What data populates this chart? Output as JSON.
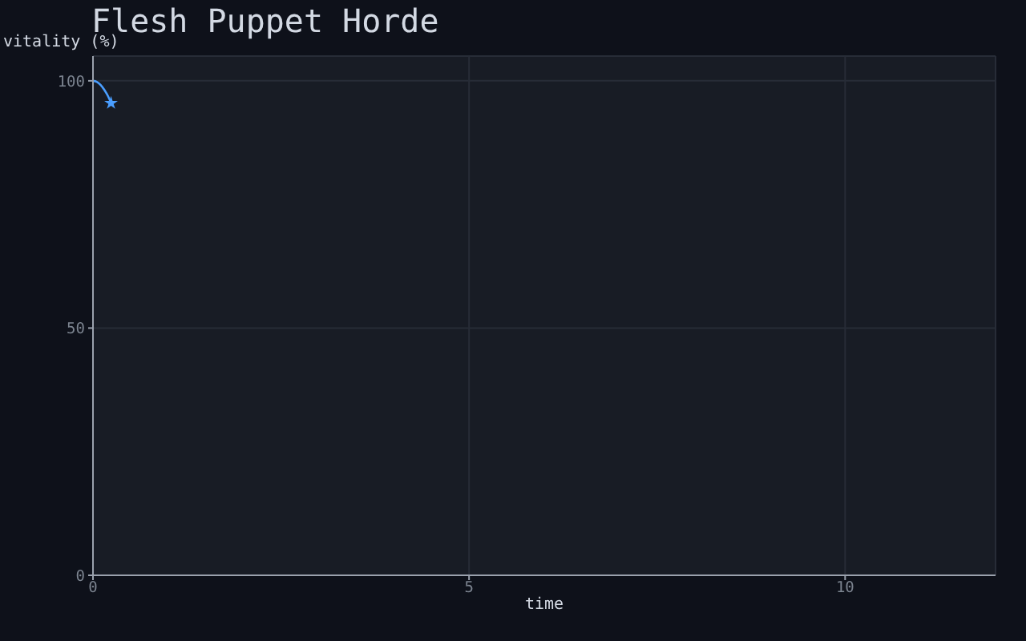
{
  "chart_data": {
    "type": "line",
    "title": "Flesh Puppet Horde",
    "xlabel": "time",
    "ylabel": "vitality (%)",
    "series": [
      {
        "color": "#4a9eff",
        "x": [
          0,
          0.05,
          0.1,
          0.15,
          0.2,
          0.24
        ],
        "values": [
          100,
          99.8,
          99.2,
          98.2,
          96.9,
          95.5
        ]
      },
      {
        "type": "scatter",
        "color": "#4a9eff",
        "marker": "star",
        "x": [
          0.24
        ],
        "values": [
          95.5
        ]
      }
    ],
    "xlim": [
      0,
      12
    ],
    "xticks": [
      0,
      5,
      10
    ],
    "ylim": [
      0,
      105
    ],
    "yticks": [
      0,
      50,
      100
    ],
    "grid": true,
    "line_style": "solid"
  }
}
